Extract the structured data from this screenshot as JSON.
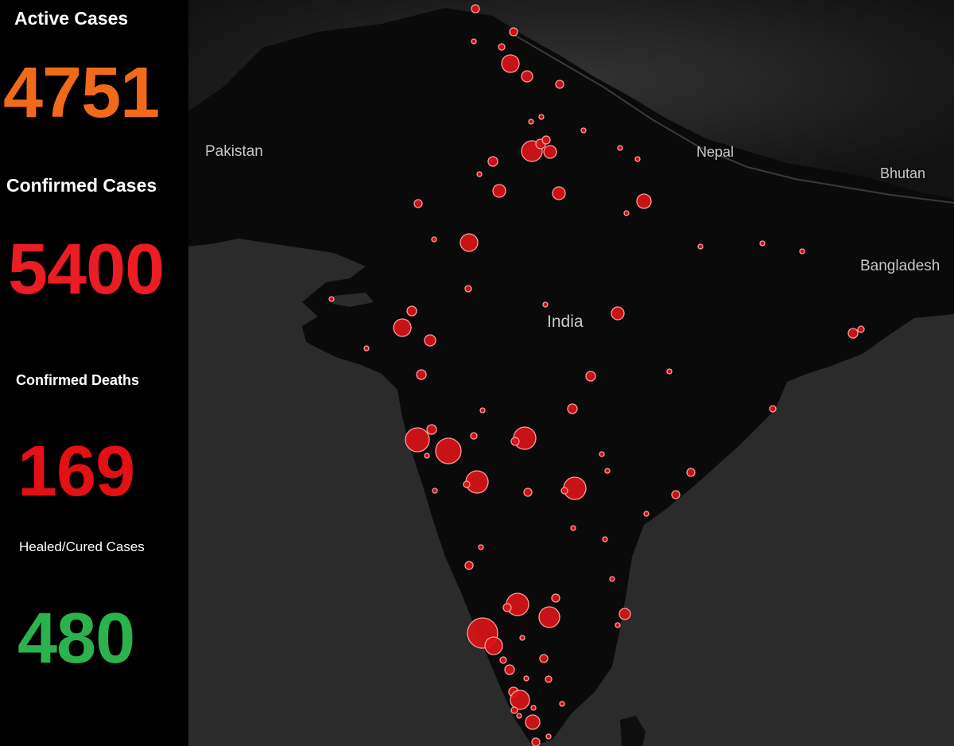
{
  "stats": {
    "active": {
      "label": "Active Cases",
      "value": "4751",
      "color": "#f06a1a"
    },
    "confirmed": {
      "label": "Confirmed Cases",
      "value": "5400",
      "color": "#ea1c24"
    },
    "deaths": {
      "label": "Confirmed Deaths",
      "value": "169",
      "color": "#e31015"
    },
    "healed": {
      "label": "Healed/Cured Cases",
      "value": "480",
      "color": "#2bb24c"
    }
  },
  "map": {
    "country_labels": {
      "pakistan": "Pakistan",
      "nepal": "Nepal",
      "bhutan": "Bhutan",
      "bangladesh": "Bangladesh",
      "india": "India"
    },
    "colors": {
      "land": "#0a0a0a",
      "sea": "#2b2b2b",
      "marker_fill": "#d81318",
      "marker_stroke": "#ff9a9a"
    }
  }
}
